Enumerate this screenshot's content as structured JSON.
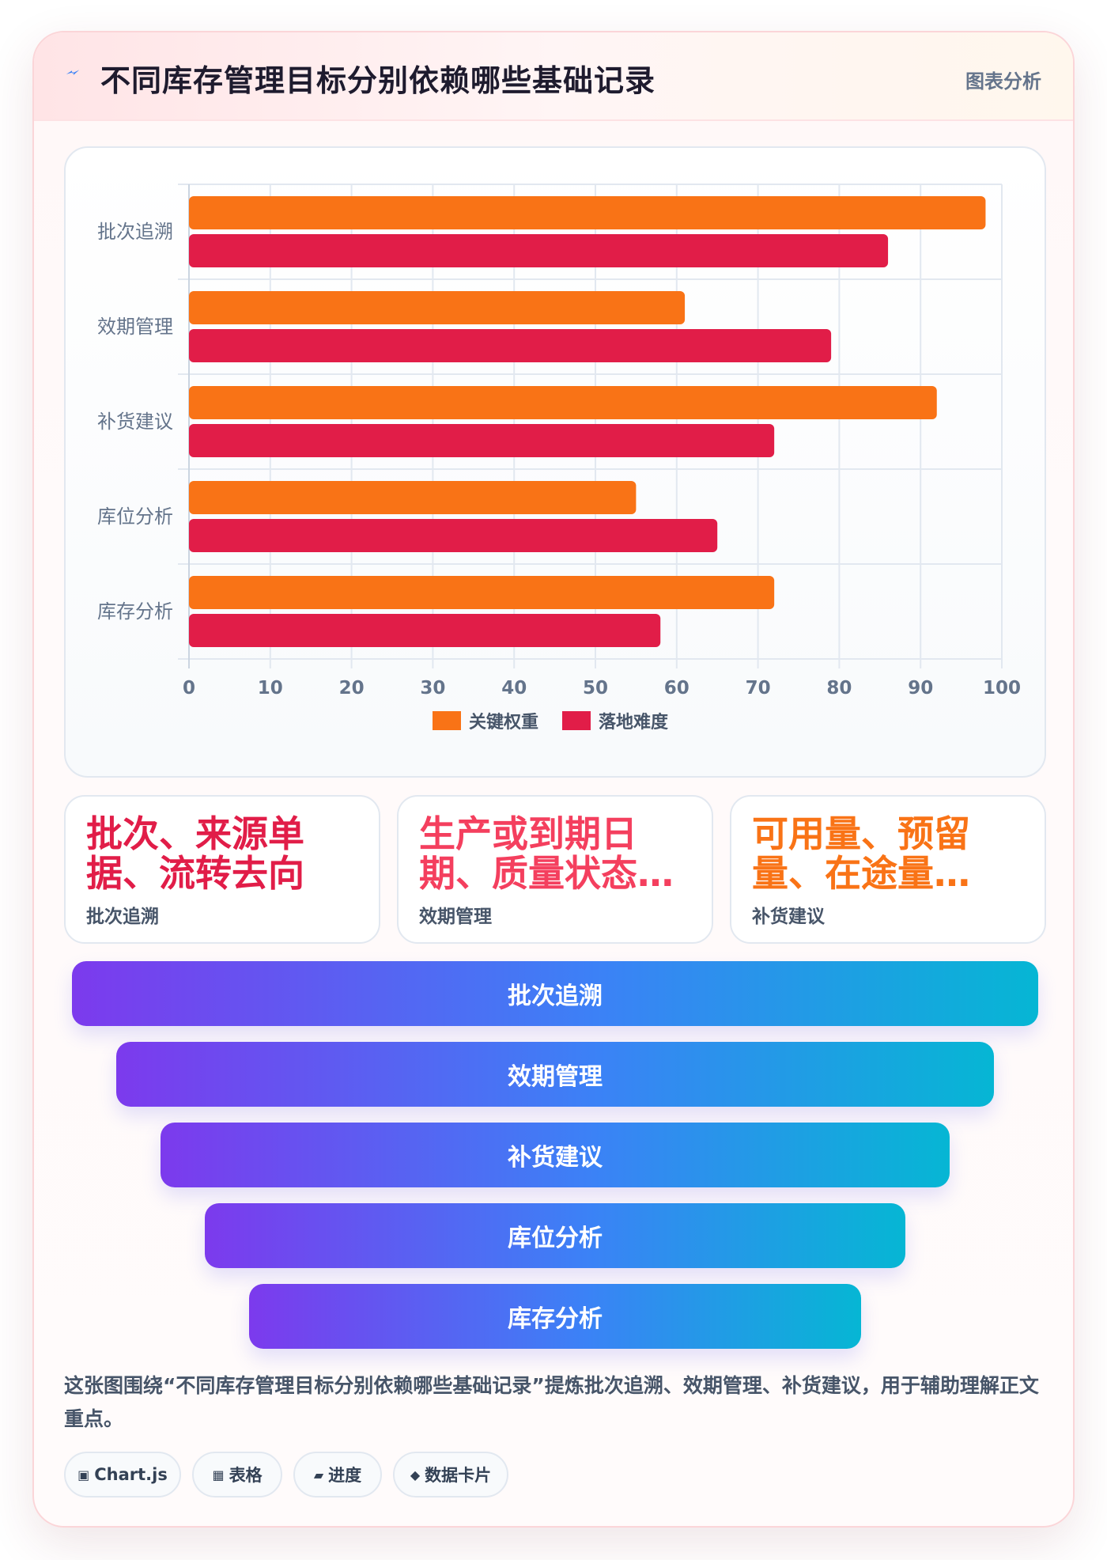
{
  "header": {
    "title": "不同库存管理目标分别依赖哪些基础记录",
    "tag": "图表分析",
    "icon": "lightning-icon"
  },
  "chart_data": {
    "type": "bar",
    "orientation": "horizontal",
    "categories": [
      "批次追溯",
      "效期管理",
      "补货建议",
      "库位分析",
      "库存分析"
    ],
    "series": [
      {
        "name": "关键权重",
        "color": "#f97316",
        "values": [
          98,
          61,
          92,
          55,
          72
        ]
      },
      {
        "name": "落地难度",
        "color": "#e11d48",
        "values": [
          86,
          79,
          72,
          65,
          58
        ]
      }
    ],
    "xlim": [
      0,
      100
    ],
    "xticks": [
      "0",
      "10",
      "20",
      "30",
      "40",
      "50",
      "60",
      "70",
      "80",
      "90",
      "100"
    ],
    "grid": true,
    "legend": "bottom"
  },
  "stats": [
    {
      "value": "批次、来源单据、流转去向",
      "label": "批次追溯",
      "color": "#e11d48"
    },
    {
      "value": "生产或到期日期、质量状态…",
      "label": "效期管理",
      "color": "#f43f5e"
    },
    {
      "value": "可用量、预留量、在途量…",
      "label": "补货建议",
      "color": "#f97316"
    }
  ],
  "funnel": [
    "批次追溯",
    "效期管理",
    "补货建议",
    "库位分析",
    "库存分析"
  ],
  "description": "这张图围绕“不同库存管理目标分别依赖哪些基础记录”提炼批次追溯、效期管理、补货建议，用于辅助理解正文重点。",
  "chips": [
    {
      "icon": "▣",
      "label": "Chart.js"
    },
    {
      "icon": "▦",
      "label": "表格"
    },
    {
      "icon": "▰",
      "label": "进度"
    },
    {
      "icon": "◆",
      "label": "数据卡片"
    }
  ]
}
